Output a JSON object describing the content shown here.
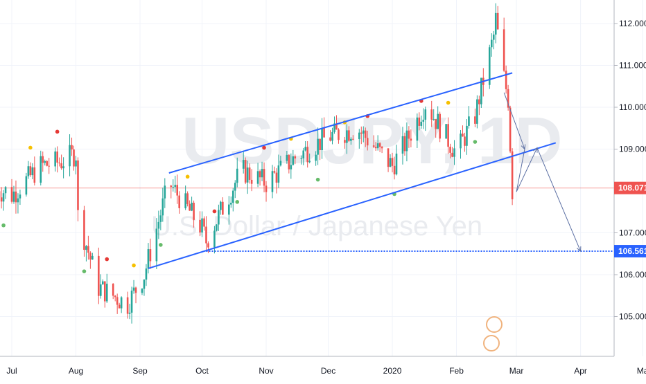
{
  "chart_data": {
    "type": "candlestick",
    "watermark": {
      "symbol": "USDJPY, 1D",
      "name": "U.S. Dollar / Japanese Yen"
    },
    "x_ticks": [
      "Jul",
      "Aug",
      "Sep",
      "Oct",
      "Nov",
      "Dec",
      "2020",
      "Feb",
      "Mar",
      "Apr",
      "Ma"
    ],
    "y_ticks": [
      "112.000",
      "111.000",
      "110.000",
      "109.000",
      "107.000",
      "106.000",
      "105.000"
    ],
    "ylim": [
      104.3,
      112.5
    ],
    "current_price": {
      "label": "108.071",
      "value": 108.071,
      "color": "#ef5350"
    },
    "target_level": {
      "label": "106.561",
      "value": 106.561,
      "color": "#2962ff"
    },
    "colors": {
      "up": "#26a69a",
      "down": "#ef5350",
      "channel": "#2962ff",
      "grid": "#f0f3fa"
    },
    "channel": {
      "upper": [
        [
          "2019-09-15",
          108.43
        ],
        [
          "2020-02-28",
          110.82
        ]
      ],
      "lower": [
        [
          "2019-09-05",
          106.15
        ],
        [
          "2020-03-20",
          109.15
        ]
      ]
    },
    "projection": [
      [
        "2020-02-24",
        110.35
      ],
      [
        "2020-03-05",
        109.0
      ],
      [
        "2020-03-01",
        107.98
      ],
      [
        "2020-03-11",
        109.03
      ],
      [
        "2020-04-01",
        106.56
      ]
    ],
    "anchor_ohlc": [
      {
        "date": "2019-07-01",
        "close": 107.9
      },
      {
        "date": "2019-07-15",
        "close": 108.6
      },
      {
        "date": "2019-07-25",
        "close": 108.7
      },
      {
        "date": "2019-08-01",
        "close": 108.9
      },
      {
        "date": "2019-08-02",
        "close": 107.4
      },
      {
        "date": "2019-08-12",
        "close": 105.7
      },
      {
        "date": "2019-08-26",
        "close": 105.3
      },
      {
        "date": "2019-09-03",
        "close": 106.0
      },
      {
        "date": "2019-09-15",
        "close": 108.2
      },
      {
        "date": "2019-10-01",
        "close": 107.1
      },
      {
        "date": "2019-10-03",
        "close": 106.8
      },
      {
        "date": "2019-10-20",
        "close": 108.5
      },
      {
        "date": "2019-11-01",
        "close": 108.2
      },
      {
        "date": "2019-11-15",
        "close": 108.8
      },
      {
        "date": "2019-12-01",
        "close": 109.3
      },
      {
        "date": "2019-12-15",
        "close": 109.5
      },
      {
        "date": "2020-01-01",
        "close": 108.6
      },
      {
        "date": "2020-01-08",
        "close": 109.2
      },
      {
        "date": "2020-01-17",
        "close": 110.1
      },
      {
        "date": "2020-02-01",
        "close": 108.9
      },
      {
        "date": "2020-02-10",
        "close": 109.8
      },
      {
        "date": "2020-02-19",
        "close": 111.7
      },
      {
        "date": "2020-02-20",
        "close": 112.1
      },
      {
        "date": "2020-02-24",
        "close": 110.7
      },
      {
        "date": "2020-02-26",
        "close": 110.2
      },
      {
        "date": "2020-02-28",
        "close": 108.0
      }
    ]
  }
}
